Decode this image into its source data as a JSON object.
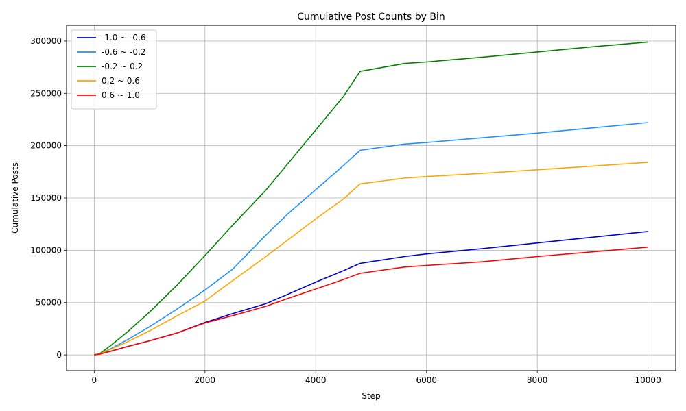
{
  "chart_data": {
    "type": "line",
    "title": "Cumulative Post Counts by Bin",
    "xlabel": "Step",
    "ylabel": "Cumulative Posts",
    "xlim": [
      -500,
      10500
    ],
    "ylim": [
      -15000,
      315000
    ],
    "xticks": [
      0,
      2000,
      4000,
      6000,
      8000,
      10000
    ],
    "yticks": [
      0,
      50000,
      100000,
      150000,
      200000,
      250000,
      300000
    ],
    "grid": true,
    "legend_position": "top-left",
    "series": [
      {
        "name": "-1.0 ~ -0.6",
        "color": "#0000cd",
        "points": [
          [
            0,
            0
          ],
          [
            100,
            800
          ],
          [
            300,
            3500
          ],
          [
            600,
            8000
          ],
          [
            1000,
            13500
          ],
          [
            1500,
            21000
          ],
          [
            2000,
            31000
          ],
          [
            2500,
            39500
          ],
          [
            3100,
            49000
          ],
          [
            3500,
            58000
          ],
          [
            4000,
            69500
          ],
          [
            4500,
            80500
          ],
          [
            4800,
            87500
          ],
          [
            5600,
            94000
          ],
          [
            6000,
            96500
          ],
          [
            7000,
            101500
          ],
          [
            8000,
            107000
          ],
          [
            9000,
            112500
          ],
          [
            10000,
            118000
          ]
        ]
      },
      {
        "name": "-0.6 ~ -0.2",
        "color": "#1e90ff",
        "points": [
          [
            0,
            0
          ],
          [
            100,
            1000
          ],
          [
            300,
            6000
          ],
          [
            600,
            14500
          ],
          [
            1000,
            27000
          ],
          [
            1500,
            44000
          ],
          [
            2000,
            62000
          ],
          [
            2500,
            82000
          ],
          [
            3100,
            114500
          ],
          [
            3500,
            135000
          ],
          [
            4000,
            158000
          ],
          [
            4500,
            181000
          ],
          [
            4800,
            195500
          ],
          [
            5600,
            201500
          ],
          [
            6000,
            203000
          ],
          [
            7000,
            207500
          ],
          [
            8000,
            212000
          ],
          [
            9000,
            217000
          ],
          [
            10000,
            222000
          ]
        ]
      },
      {
        "name": "-0.2 ~ 0.2",
        "color": "#008000",
        "points": [
          [
            0,
            0
          ],
          [
            100,
            1200
          ],
          [
            300,
            9000
          ],
          [
            600,
            22000
          ],
          [
            1000,
            41000
          ],
          [
            1500,
            67000
          ],
          [
            2000,
            95000
          ],
          [
            2500,
            124000
          ],
          [
            3100,
            157500
          ],
          [
            3500,
            183000
          ],
          [
            4000,
            215000
          ],
          [
            4500,
            247000
          ],
          [
            4800,
            271000
          ],
          [
            5600,
            278500
          ],
          [
            6000,
            280000
          ],
          [
            7000,
            284500
          ],
          [
            8000,
            289500
          ],
          [
            9000,
            294500
          ],
          [
            10000,
            299000
          ]
        ]
      },
      {
        "name": "0.2 ~ 0.6",
        "color": "#ffa500",
        "points": [
          [
            0,
            0
          ],
          [
            100,
            900
          ],
          [
            300,
            5500
          ],
          [
            600,
            12500
          ],
          [
            1000,
            23000
          ],
          [
            1500,
            37500
          ],
          [
            2000,
            51500
          ],
          [
            2500,
            71000
          ],
          [
            3100,
            94000
          ],
          [
            3500,
            110000
          ],
          [
            4000,
            130000
          ],
          [
            4500,
            149000
          ],
          [
            4800,
            163500
          ],
          [
            5600,
            169000
          ],
          [
            6000,
            170500
          ],
          [
            7000,
            173500
          ],
          [
            8000,
            177000
          ],
          [
            9000,
            180500
          ],
          [
            10000,
            184000
          ]
        ]
      },
      {
        "name": "0.6 ~ 1.0",
        "color": "#ff0000",
        "points": [
          [
            0,
            0
          ],
          [
            100,
            700
          ],
          [
            300,
            3500
          ],
          [
            600,
            8000
          ],
          [
            1000,
            13500
          ],
          [
            1500,
            21000
          ],
          [
            2000,
            30500
          ],
          [
            2500,
            37500
          ],
          [
            3100,
            46500
          ],
          [
            3500,
            54000
          ],
          [
            4000,
            63000
          ],
          [
            4500,
            72000
          ],
          [
            4800,
            78000
          ],
          [
            5600,
            84000
          ],
          [
            6000,
            85500
          ],
          [
            7000,
            89000
          ],
          [
            8000,
            94000
          ],
          [
            9000,
            98500
          ],
          [
            10000,
            103000
          ]
        ]
      }
    ]
  }
}
